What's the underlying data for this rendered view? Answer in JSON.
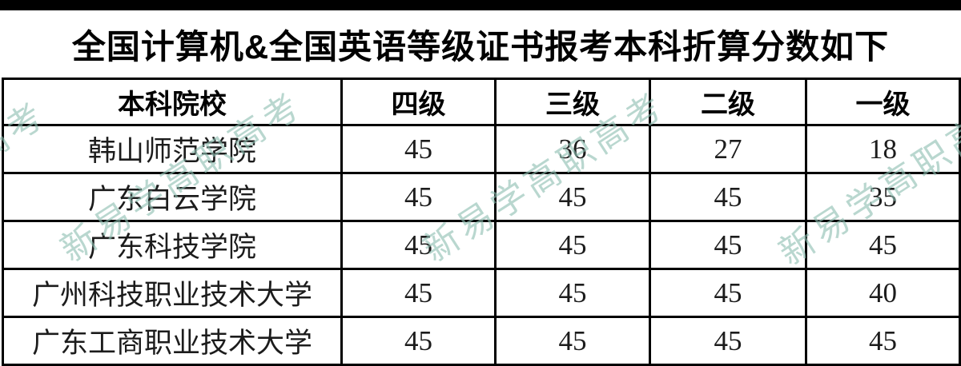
{
  "page": {
    "title": "全国计算机&全国英语等级证书报考本科折算分数如下"
  },
  "watermark": {
    "text": "新易学高职高考",
    "color": "#8fbfb2"
  },
  "table": {
    "columns": [
      "本科院校",
      "四级",
      "三级",
      "二级",
      "一级"
    ],
    "rows": [
      {
        "school": "韩山师范学院",
        "scores": [
          "45",
          "36",
          "27",
          "18"
        ]
      },
      {
        "school": "广东白云学院",
        "scores": [
          "45",
          "45",
          "45",
          "35"
        ]
      },
      {
        "school": "广东科技学院",
        "scores": [
          "45",
          "45",
          "45",
          "45"
        ]
      },
      {
        "school": "广州科技职业技术大学",
        "scores": [
          "45",
          "45",
          "45",
          "40"
        ]
      },
      {
        "school": "广东工商职业技术大学",
        "scores": [
          "45",
          "45",
          "45",
          "45"
        ]
      }
    ]
  },
  "chart_data": {
    "type": "table",
    "title": "全国计算机&全国英语等级证书报考本科折算分数如下",
    "columns": [
      "本科院校",
      "四级",
      "三级",
      "二级",
      "一级"
    ],
    "rows": [
      [
        "韩山师范学院",
        45,
        36,
        27,
        18
      ],
      [
        "广东白云学院",
        45,
        45,
        45,
        35
      ],
      [
        "广东科技学院",
        45,
        45,
        45,
        45
      ],
      [
        "广州科技职业技术大学",
        45,
        45,
        45,
        40
      ],
      [
        "广东工商职业技术大学",
        45,
        45,
        45,
        45
      ]
    ]
  }
}
